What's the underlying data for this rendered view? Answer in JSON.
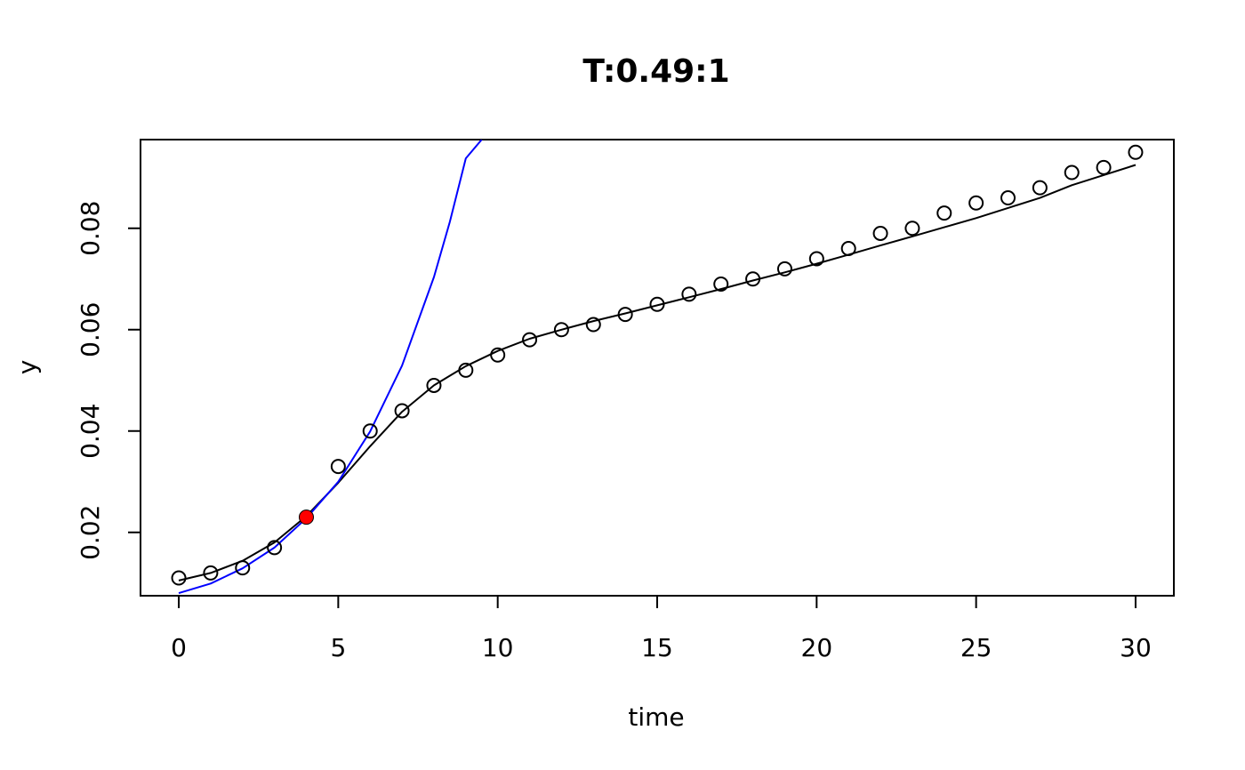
{
  "chart_data": {
    "type": "scatter",
    "title": "T:0.49:1",
    "xlabel": "time",
    "ylabel": "y",
    "xlim": [
      -1.2,
      31.2
    ],
    "ylim": [
      0.0075,
      0.0975
    ],
    "xticks": [
      0,
      5,
      10,
      15,
      20,
      25,
      30
    ],
    "xtick_labels": [
      "0",
      "5",
      "10",
      "15",
      "20",
      "25",
      "30"
    ],
    "yticks": [
      0.02,
      0.04,
      0.06,
      0.08
    ],
    "ytick_labels": [
      "0.02",
      "0.04",
      "0.06",
      "0.08"
    ],
    "grid": false,
    "legend": "none",
    "series": [
      {
        "kind": "points",
        "marker": "open-circle",
        "color": "#000000",
        "x": [
          0,
          1,
          2,
          3,
          4,
          5,
          6,
          7,
          8,
          9,
          10,
          11,
          12,
          13,
          14,
          15,
          16,
          17,
          18,
          19,
          20,
          21,
          22,
          23,
          24,
          25,
          26,
          27,
          28,
          29,
          30
        ],
        "y": [
          0.011,
          0.012,
          0.013,
          0.017,
          0.023,
          0.033,
          0.04,
          0.044,
          0.049,
          0.052,
          0.055,
          0.058,
          0.06,
          0.061,
          0.063,
          0.065,
          0.067,
          0.069,
          0.07,
          0.072,
          0.074,
          0.076,
          0.079,
          0.08,
          0.083,
          0.085,
          0.086,
          0.088,
          0.091,
          0.092,
          0.095
        ]
      },
      {
        "kind": "line",
        "color": "#000000",
        "x": [
          0,
          1,
          2,
          3,
          4,
          5,
          6,
          7,
          8,
          9,
          10,
          11,
          12,
          13,
          14,
          15,
          16,
          17,
          18,
          19,
          20,
          21,
          22,
          23,
          24,
          25,
          26,
          27,
          28,
          29,
          30
        ],
        "y": [
          0.0105,
          0.012,
          0.0144,
          0.018,
          0.0232,
          0.0298,
          0.037,
          0.0438,
          0.049,
          0.0528,
          0.0558,
          0.0582,
          0.06,
          0.0617,
          0.0632,
          0.0648,
          0.0664,
          0.068,
          0.0697,
          0.0713,
          0.073,
          0.0748,
          0.0766,
          0.0784,
          0.0802,
          0.082,
          0.084,
          0.086,
          0.0885,
          0.0905,
          0.0925
        ]
      },
      {
        "kind": "line",
        "color": "#0000ff",
        "x": [
          0,
          1,
          2,
          3,
          4,
          5,
          6,
          7,
          8,
          8.5,
          9,
          9.5
        ],
        "y": [
          0.008,
          0.0099,
          0.0129,
          0.017,
          0.0228,
          0.03,
          0.0399,
          0.0529,
          0.0704,
          0.0813,
          0.0938,
          0.0975
        ]
      },
      {
        "kind": "highlight-point",
        "marker": "filled-circle",
        "color": "#ff0000",
        "x": [
          4
        ],
        "y": [
          0.023
        ]
      }
    ]
  }
}
